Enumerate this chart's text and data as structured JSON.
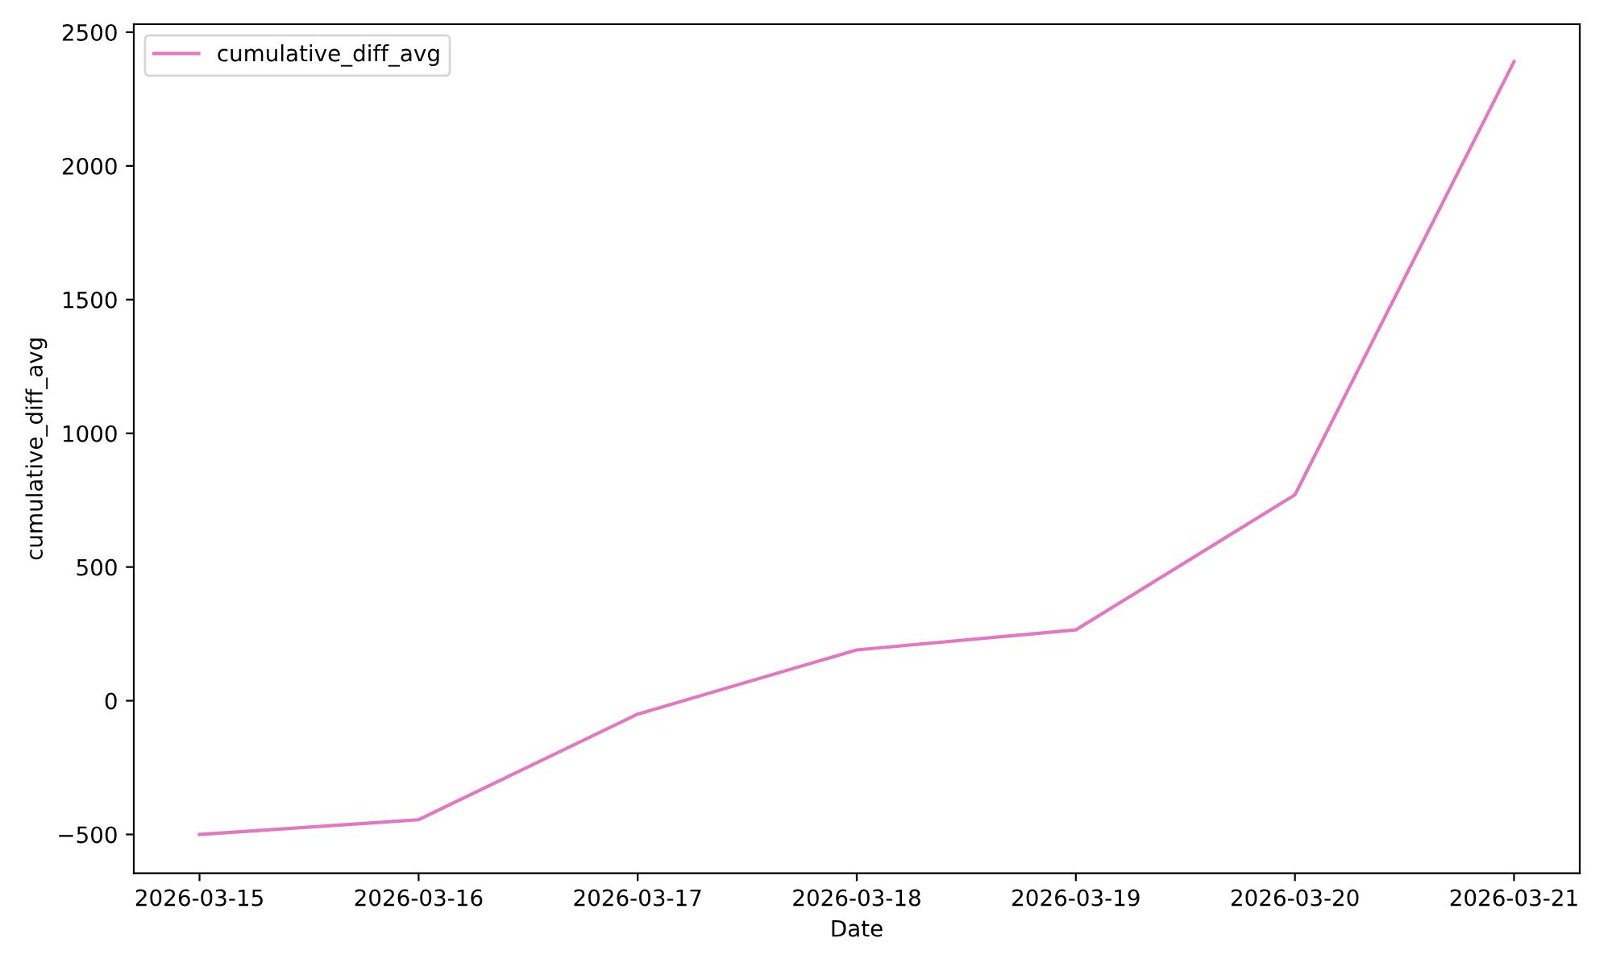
{
  "chart_data": {
    "type": "line",
    "xlabel": "Date",
    "ylabel": "cumulative_diff_avg",
    "x": [
      "2026-03-15",
      "2026-03-16",
      "2026-03-17",
      "2026-03-18",
      "2026-03-19",
      "2026-03-20",
      "2026-03-21"
    ],
    "series": [
      {
        "name": "cumulative_diff_avg",
        "color": "#e377c2",
        "values": [
          -500,
          -445,
          -50,
          190,
          265,
          770,
          2390
        ]
      }
    ],
    "xlim": [
      "2026-03-14T16:48",
      "2026-03-21T07:12"
    ],
    "xticks": [
      "2026-03-15",
      "2026-03-16",
      "2026-03-17",
      "2026-03-18",
      "2026-03-19",
      "2026-03-20",
      "2026-03-21"
    ],
    "ylim": [
      -645,
      2530
    ],
    "yticks": [
      {
        "value": -500,
        "label": "−500"
      },
      0,
      500,
      1000,
      1500,
      2000,
      2500
    ],
    "grid": false,
    "legend": "top left",
    "marker": "none",
    "line_style": "solid"
  }
}
